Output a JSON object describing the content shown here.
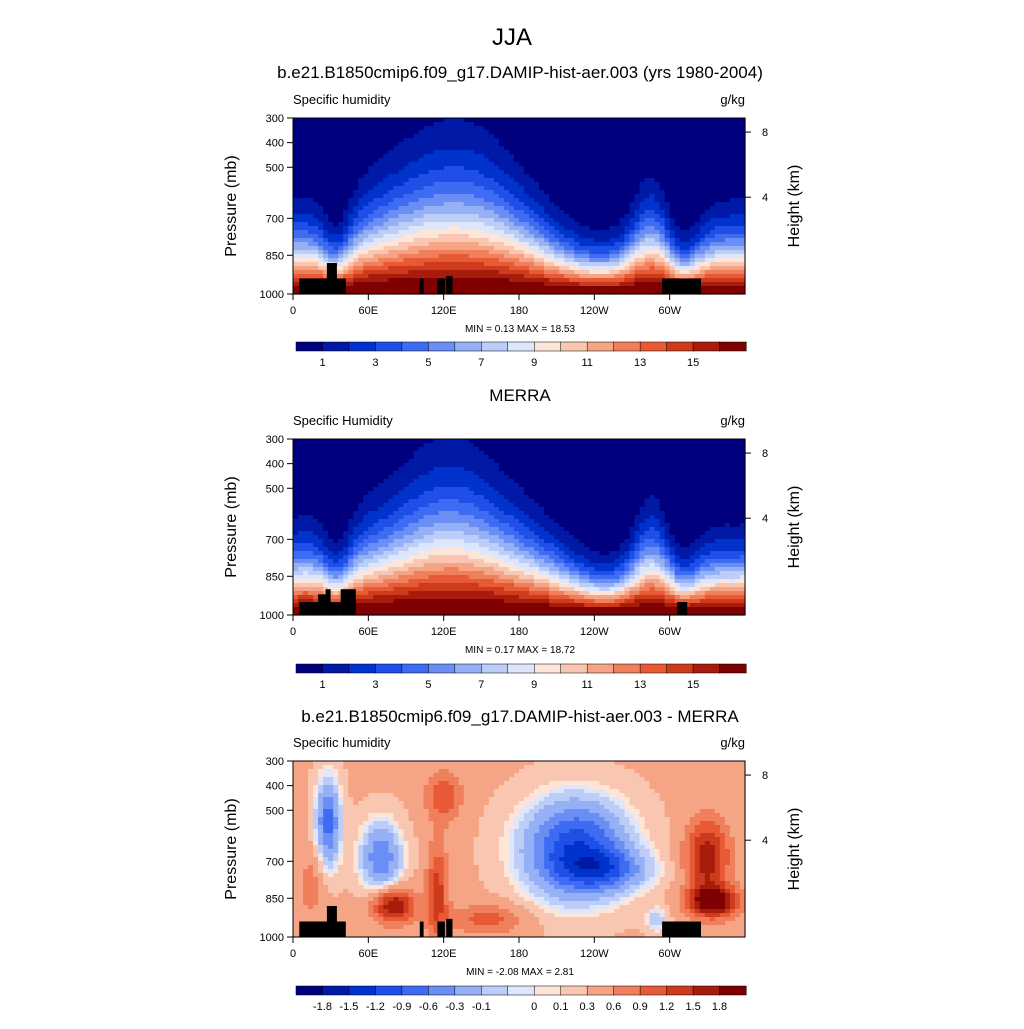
{
  "main_title": "JJA",
  "colors": {
    "abs": [
      "#00007f",
      "#0019a6",
      "#0033cc",
      "#1f4fe6",
      "#3d6cf2",
      "#6b8ef5",
      "#96b0f5",
      "#bccdf7",
      "#dde6fa",
      "#fde6d9",
      "#f9c7b1",
      "#f5a585",
      "#f07f5c",
      "#e85a36",
      "#cd3a1c",
      "#a81c0d",
      "#7f0000"
    ],
    "diff": [
      "#00007f",
      "#0019a6",
      "#0033cc",
      "#1f4fe6",
      "#3d6cf2",
      "#6b8ef5",
      "#96b0f5",
      "#bccdf7",
      "#dde6fa",
      "#fde6d9",
      "#f9c7b1",
      "#f5a585",
      "#f07f5c",
      "#e85a36",
      "#cd3a1c",
      "#a81c0d",
      "#7f0000"
    ],
    "terrain": "#000000"
  },
  "chart_data": [
    {
      "type": "contour",
      "title": "b.e21.B1850cmip6.f09_g17.DAMIP-hist-aer.003 (yrs 1980-2004)",
      "left_label": "Specific humidity",
      "right_label": "g/kg",
      "ylabel": "Pressure (mb)",
      "y2label": "Height (km)",
      "xticks": [
        "0",
        "60E",
        "120E",
        "180",
        "120W",
        "60W"
      ],
      "yticks": [
        "300",
        "400",
        "500",
        "700",
        "850",
        "1000"
      ],
      "y2ticks": [
        "8",
        "4"
      ],
      "stats": "MIN =   0.13  MAX =  18.53",
      "colorbar_labels": [
        "1",
        "3",
        "5",
        "7",
        "9",
        "11",
        "13",
        "15"
      ],
      "min": 0.13,
      "max": 18.53
    },
    {
      "type": "contour",
      "title": "MERRA",
      "left_label": "Specific Humidity",
      "right_label": "g/kg",
      "ylabel": "Pressure (mb)",
      "y2label": "Height (km)",
      "xticks": [
        "0",
        "60E",
        "120E",
        "180",
        "120W",
        "60W"
      ],
      "yticks": [
        "300",
        "400",
        "500",
        "700",
        "850",
        "1000"
      ],
      "y2ticks": [
        "8",
        "4"
      ],
      "stats": "MIN =   0.17  MAX =  18.72",
      "colorbar_labels": [
        "1",
        "3",
        "5",
        "7",
        "9",
        "11",
        "13",
        "15"
      ],
      "min": 0.17,
      "max": 18.72
    },
    {
      "type": "contour",
      "title": "b.e21.B1850cmip6.f09_g17.DAMIP-hist-aer.003 - MERRA",
      "left_label": "Specific humidity",
      "right_label": "g/kg",
      "ylabel": "Pressure (mb)",
      "y2label": "Height (km)",
      "xticks": [
        "0",
        "60E",
        "120E",
        "180",
        "120W",
        "60W"
      ],
      "yticks": [
        "300",
        "400",
        "500",
        "700",
        "850",
        "1000"
      ],
      "y2ticks": [
        "8",
        "4"
      ],
      "stats": "MIN =  -2.08  MAX =   2.81",
      "colorbar_labels": [
        "-1.8",
        "-1.5",
        "-1.2",
        "-0.9",
        "-0.6",
        "-0.3",
        "-0.1",
        "0",
        "0.1",
        "0.3",
        "0.6",
        "0.9",
        "1.2",
        "1.5",
        "1.8"
      ],
      "min": -2.08,
      "max": 2.81
    }
  ]
}
